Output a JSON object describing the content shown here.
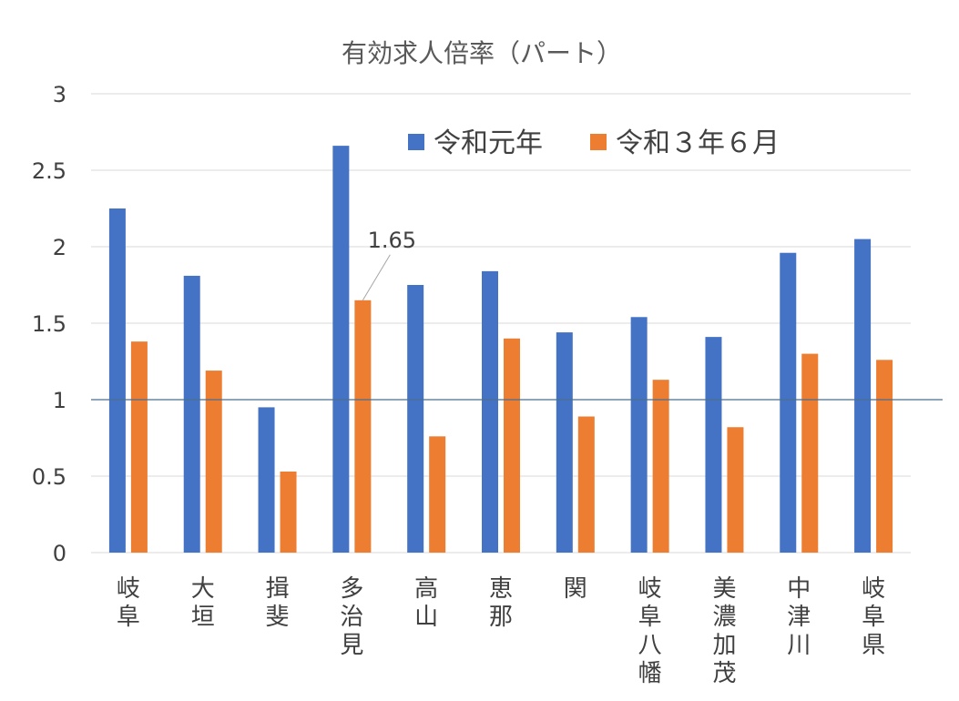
{
  "chart_data": {
    "type": "bar",
    "title": "有効求人倍率（パート）",
    "xlabel": "",
    "ylabel": "",
    "ylim": [
      0,
      3
    ],
    "yticks": [
      "0",
      "0.5",
      "1",
      "1.5",
      "2",
      "2.5",
      "3"
    ],
    "ytick_values": [
      0,
      0.5,
      1,
      1.5,
      2,
      2.5,
      3
    ],
    "grid": true,
    "reference_line": 1,
    "legend_position": "top-right",
    "categories": [
      "岐阜",
      "大垣",
      "揖斐",
      "多治見",
      "高山",
      "恵那",
      "関",
      "岐阜八幡",
      "美濃加茂",
      "中津川",
      "岐阜県"
    ],
    "series": [
      {
        "name": "令和元年",
        "color": "#4472C4",
        "values": [
          2.25,
          1.81,
          0.95,
          2.66,
          1.75,
          1.84,
          1.44,
          1.54,
          1.41,
          1.96,
          2.05
        ]
      },
      {
        "name": "令和３年６月",
        "color": "#ED7D31",
        "values": [
          1.38,
          1.19,
          0.53,
          1.65,
          0.76,
          1.4,
          0.89,
          1.13,
          0.82,
          1.3,
          1.26
        ]
      }
    ],
    "annotations": [
      {
        "series": 1,
        "category": 3,
        "text": "1.65"
      }
    ]
  }
}
